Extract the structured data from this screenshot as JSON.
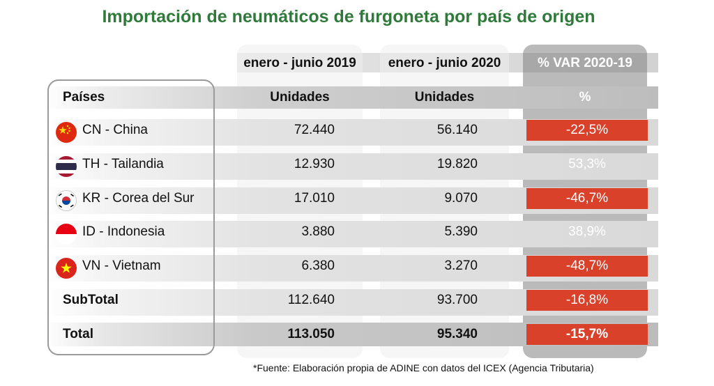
{
  "title": "Importación de neumáticos de furgoneta por país de origen",
  "chart_data": {
    "type": "table",
    "title": "Importación de neumáticos de furgoneta por país de origen",
    "period_headers": [
      "enero - junio 2019",
      "enero - junio 2020",
      "% VAR 2020-19"
    ],
    "column_headers": [
      "Países",
      "Unidades",
      "Unidades",
      "%"
    ],
    "rows": [
      {
        "country": "CN - China",
        "v2019": "72.440",
        "v2020": "56.140",
        "var": "-22,5%",
        "negative": true,
        "flag": "china-flag-icon"
      },
      {
        "country": "TH - Tailandia",
        "v2019": "12.930",
        "v2020": "19.820",
        "var": "53,3%",
        "negative": false,
        "flag": "thailand-flag-icon"
      },
      {
        "country": "KR - Corea del Sur",
        "v2019": "17.010",
        "v2020": "9.070",
        "var": "-46,7%",
        "negative": true,
        "flag": "south-korea-flag-icon"
      },
      {
        "country": "ID - Indonesia",
        "v2019": "3.880",
        "v2020": "5.390",
        "var": "38,9%",
        "negative": false,
        "flag": "indonesia-flag-icon"
      },
      {
        "country": "VN - Vietnam",
        "v2019": "6.380",
        "v2020": "3.270",
        "var": "-48,7%",
        "negative": true,
        "flag": "vietnam-flag-icon"
      }
    ],
    "subtotal": {
      "label": "SubTotal",
      "v2019": "112.640",
      "v2020": "93.700",
      "var": "-16,8%"
    },
    "total": {
      "label": "Total",
      "v2019": "113.050",
      "v2020": "95.340",
      "var": "-15,7%"
    }
  },
  "colors": {
    "title": "#2f7a3b",
    "negative": "#d9412b"
  },
  "footnote": "*Fuente: Elaboración propia de ADINE con datos del ICEX (Agencia Tributaria)"
}
